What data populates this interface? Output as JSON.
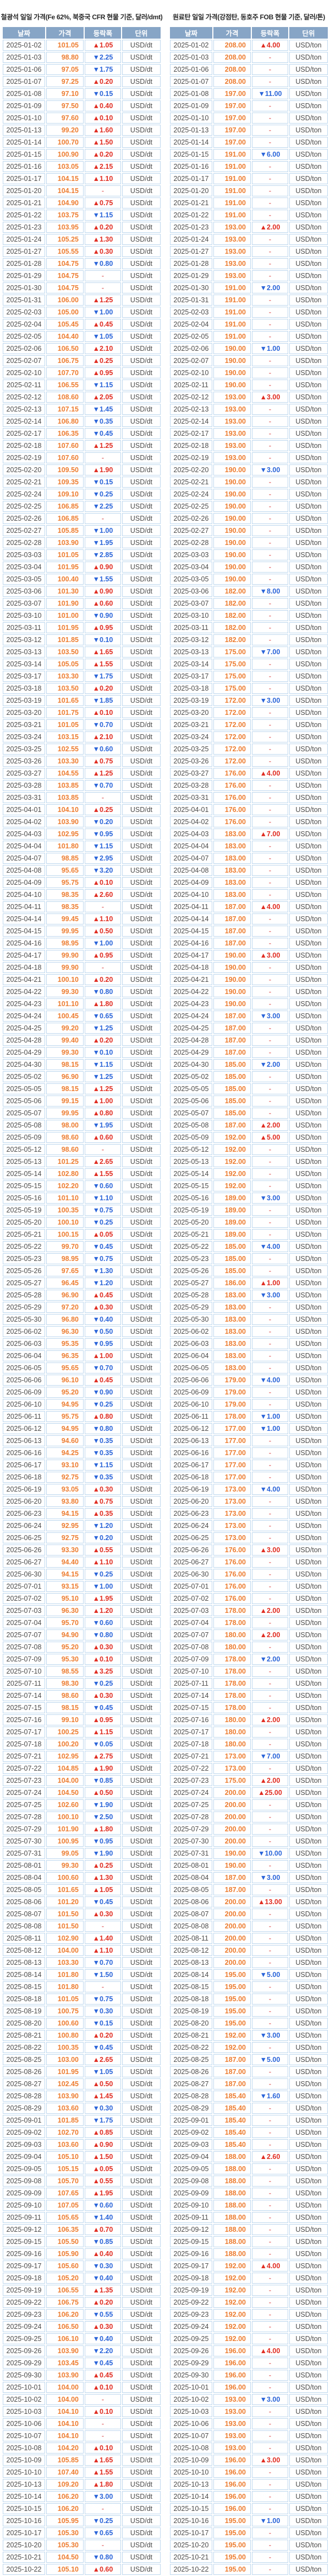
{
  "glyphs": {
    "up": "▲",
    "down": "▼",
    "flat": "-"
  },
  "colors": {
    "header_bg": "#87a5c6",
    "border_color": "#bdd7ee",
    "price_color": "#ed7d31",
    "up_color": "#e02d22",
    "down_color": "#2b65d9",
    "flat_color": "#e57f7f",
    "date_color": "#4c4c4c"
  },
  "dates": [
    "2025-01-02",
    "2025-01-03",
    "2025-01-06",
    "2025-01-07",
    "2025-01-08",
    "2025-01-09",
    "2025-01-10",
    "2025-01-13",
    "2025-01-14",
    "2025-01-15",
    "2025-01-16",
    "2025-01-17",
    "2025-01-20",
    "2025-01-21",
    "2025-01-22",
    "2025-01-23",
    "2025-01-24",
    "2025-01-27",
    "2025-01-28",
    "2025-01-29",
    "2025-01-30",
    "2025-01-31",
    "2025-02-03",
    "2025-02-04",
    "2025-02-05",
    "2025-02-06",
    "2025-02-07",
    "2025-02-10",
    "2025-02-11",
    "2025-02-12",
    "2025-02-13",
    "2025-02-14",
    "2025-02-17",
    "2025-02-18",
    "2025-02-19",
    "2025-02-20",
    "2025-02-21",
    "2025-02-24",
    "2025-02-25",
    "2025-02-26",
    "2025-02-27",
    "2025-02-28",
    "2025-03-03",
    "2025-03-04",
    "2025-03-05",
    "2025-03-06",
    "2025-03-07",
    "2025-03-10",
    "2025-03-11",
    "2025-03-12",
    "2025-03-13",
    "2025-03-14",
    "2025-03-17",
    "2025-03-18",
    "2025-03-19",
    "2025-03-20",
    "2025-03-21",
    "2025-03-24",
    "2025-03-25",
    "2025-03-26",
    "2025-03-27",
    "2025-03-28",
    "2025-03-31",
    "2025-04-01",
    "2025-04-02",
    "2025-04-03",
    "2025-04-04",
    "2025-04-07",
    "2025-04-08",
    "2025-04-09",
    "2025-04-10",
    "2025-04-11",
    "2025-04-14",
    "2025-04-15",
    "2025-04-16",
    "2025-04-17",
    "2025-04-18",
    "2025-04-21",
    "2025-04-22",
    "2025-04-23",
    "2025-04-24",
    "2025-04-25",
    "2025-04-28",
    "2025-04-29",
    "2025-04-30",
    "2025-05-02",
    "2025-05-05",
    "2025-05-06",
    "2025-05-07",
    "2025-05-08",
    "2025-05-09",
    "2025-05-12",
    "2025-05-13",
    "2025-05-14",
    "2025-05-15",
    "2025-05-16",
    "2025-05-19",
    "2025-05-20",
    "2025-05-21",
    "2025-05-22",
    "2025-05-23",
    "2025-05-26",
    "2025-05-27",
    "2025-05-28",
    "2025-05-29",
    "2025-05-30",
    "2025-06-02",
    "2025-06-03",
    "2025-06-04",
    "2025-06-05",
    "2025-06-06",
    "2025-06-09",
    "2025-06-10",
    "2025-06-11",
    "2025-06-12",
    "2025-06-13",
    "2025-06-16",
    "2025-06-17",
    "2025-06-18",
    "2025-06-19",
    "2025-06-20",
    "2025-06-23",
    "2025-06-24",
    "2025-06-25",
    "2025-06-26",
    "2025-06-27",
    "2025-06-30",
    "2025-07-01",
    "2025-07-02",
    "2025-07-03",
    "2025-07-04",
    "2025-07-07",
    "2025-07-08",
    "2025-07-09",
    "2025-07-10",
    "2025-07-11",
    "2025-07-14",
    "2025-07-15",
    "2025-07-16",
    "2025-07-17",
    "2025-07-18",
    "2025-07-21",
    "2025-07-22",
    "2025-07-23",
    "2025-07-24",
    "2025-07-25",
    "2025-07-28",
    "2025-07-29",
    "2025-07-30",
    "2025-07-31",
    "2025-08-01",
    "2025-08-04",
    "2025-08-05",
    "2025-08-06",
    "2025-08-07",
    "2025-08-08",
    "2025-08-11",
    "2025-08-12",
    "2025-08-13",
    "2025-08-14",
    "2025-08-15",
    "2025-08-18",
    "2025-08-19",
    "2025-08-20",
    "2025-08-21",
    "2025-08-22",
    "2025-08-25",
    "2025-08-26",
    "2025-08-27",
    "2025-08-28",
    "2025-08-29",
    "2025-09-01",
    "2025-09-02",
    "2025-09-03",
    "2025-09-04",
    "2025-09-05",
    "2025-09-08",
    "2025-09-09",
    "2025-09-10",
    "2025-09-11",
    "2025-09-12",
    "2025-09-15",
    "2025-09-16",
    "2025-09-17",
    "2025-09-18",
    "2025-09-19",
    "2025-09-22",
    "2025-09-23",
    "2025-09-24",
    "2025-09-25",
    "2025-09-26",
    "2025-09-29",
    "2025-09-30",
    "2025-10-01",
    "2025-10-02",
    "2025-10-03",
    "2025-10-06",
    "2025-10-07",
    "2025-10-08",
    "2025-10-09",
    "2025-10-10",
    "2025-10-13",
    "2025-10-14",
    "2025-10-15",
    "2025-10-16",
    "2025-10-17",
    "2025-10-20",
    "2025-10-21",
    "2025-10-22"
  ],
  "chart_data": [
    {
      "type": "table",
      "title": "철광석 일일 가격(Fe 62%, 북중국 CFR 현물 기준, 달러/dmt)",
      "headers": [
        "날짜",
        "가격",
        "등락폭",
        "단위"
      ],
      "unit": "USD/dt",
      "prices": [
        101.05,
        98.8,
        97.05,
        97.25,
        97.1,
        97.5,
        97.6,
        99.2,
        100.7,
        100.9,
        103.05,
        104.15,
        104.15,
        104.9,
        103.75,
        103.95,
        105.25,
        105.55,
        104.75,
        104.75,
        104.75,
        106.0,
        105.0,
        105.45,
        104.4,
        106.5,
        106.75,
        107.7,
        106.55,
        108.6,
        107.15,
        106.8,
        106.35,
        107.6,
        107.6,
        109.5,
        109.35,
        109.1,
        106.85,
        106.85,
        105.85,
        103.9,
        101.05,
        101.95,
        100.4,
        101.3,
        101.9,
        101.0,
        101.95,
        101.85,
        103.5,
        105.05,
        103.3,
        103.5,
        101.65,
        101.75,
        101.05,
        103.15,
        102.55,
        103.3,
        104.55,
        103.85,
        103.85,
        104.1,
        103.9,
        102.95,
        101.8,
        98.85,
        95.65,
        95.75,
        98.35,
        98.35,
        99.45,
        99.95,
        98.95,
        99.9,
        99.9,
        100.1,
        99.3,
        101.1,
        100.45,
        99.2,
        99.4,
        99.3,
        98.15,
        96.9,
        98.15,
        99.15,
        99.95,
        98.0,
        98.6,
        98.6,
        101.25,
        102.8,
        102.2,
        101.1,
        100.35,
        100.1,
        100.15,
        99.7,
        98.95,
        97.65,
        96.45,
        96.9,
        97.2,
        96.8,
        96.3,
        95.35,
        96.35,
        95.65,
        96.1,
        95.2,
        94.95,
        95.75,
        94.95,
        94.6,
        94.25,
        93.1,
        92.75,
        93.05,
        93.8,
        94.15,
        92.95,
        92.75,
        93.3,
        94.4,
        94.15,
        93.15,
        95.1,
        96.3,
        95.7,
        94.9,
        95.2,
        95.3,
        98.55,
        98.3,
        98.6,
        98.15,
        99.1,
        100.25,
        100.2,
        102.95,
        104.85,
        104.0,
        104.5,
        102.6,
        100.1,
        101.9,
        100.95,
        99.05,
        99.3,
        100.6,
        101.65,
        101.2,
        101.5,
        101.5,
        102.9,
        104.0,
        103.3,
        101.8,
        101.8,
        101.05,
        100.75,
        100.6,
        100.8,
        100.35,
        103.0,
        101.95,
        102.45,
        103.9,
        103.6,
        101.85,
        102.7,
        103.6,
        105.1,
        105.15,
        105.7,
        107.65,
        107.05,
        105.65,
        106.35,
        105.5,
        105.9,
        105.6,
        105.2,
        106.55,
        106.75,
        106.2,
        106.5,
        106.1,
        103.9,
        103.45,
        103.9,
        104.0,
        104.0,
        104.1,
        104.1,
        104.1,
        104.2,
        105.85,
        107.4,
        109.2,
        106.2,
        106.2,
        105.95,
        105.3,
        105.3,
        104.5,
        105.1
      ],
      "changes": [
        1.05,
        -2.25,
        -1.75,
        0.2,
        -0.15,
        0.4,
        0.1,
        1.6,
        1.5,
        0.2,
        2.15,
        1.1,
        null,
        0.75,
        -1.15,
        0.2,
        1.3,
        0.3,
        -0.8,
        null,
        null,
        1.25,
        -1.0,
        0.45,
        -1.05,
        2.1,
        0.25,
        0.95,
        -1.15,
        2.05,
        -1.45,
        -0.35,
        -0.45,
        1.25,
        null,
        1.9,
        -0.15,
        -0.25,
        -2.25,
        null,
        -1.0,
        -1.95,
        -2.85,
        0.9,
        -1.55,
        0.9,
        0.6,
        -0.9,
        0.95,
        -0.1,
        1.65,
        1.55,
        -1.75,
        0.2,
        -1.85,
        0.1,
        -0.7,
        2.1,
        -0.6,
        0.75,
        1.25,
        -0.7,
        null,
        0.25,
        -0.2,
        -0.95,
        -1.15,
        -2.95,
        -3.2,
        0.1,
        2.6,
        null,
        1.1,
        0.5,
        -1.0,
        0.95,
        null,
        0.2,
        -0.8,
        1.8,
        -0.65,
        -1.25,
        0.2,
        -0.1,
        -1.15,
        -1.25,
        1.25,
        1.0,
        0.8,
        -1.95,
        0.6,
        null,
        2.65,
        1.55,
        -0.6,
        -1.1,
        -0.75,
        -0.25,
        0.05,
        -0.45,
        -0.75,
        -1.3,
        -1.2,
        0.45,
        0.3,
        -0.4,
        -0.5,
        -0.95,
        1.0,
        -0.7,
        0.45,
        -0.9,
        -0.25,
        0.8,
        -0.8,
        -0.35,
        -0.35,
        -1.15,
        -0.35,
        0.3,
        0.75,
        0.35,
        -1.2,
        -0.2,
        0.55,
        1.1,
        -0.25,
        -1.0,
        1.95,
        1.2,
        -0.6,
        -0.8,
        0.3,
        0.1,
        3.25,
        -0.25,
        0.3,
        -0.45,
        0.95,
        1.15,
        -0.05,
        2.75,
        1.9,
        -0.85,
        0.5,
        -1.9,
        -2.5,
        1.8,
        -0.95,
        -1.9,
        0.25,
        1.3,
        1.05,
        -0.45,
        0.3,
        null,
        1.4,
        1.1,
        -0.7,
        -1.5,
        null,
        -0.75,
        -0.3,
        -0.15,
        0.2,
        -0.45,
        2.65,
        -1.05,
        0.5,
        1.45,
        -0.3,
        -1.75,
        0.85,
        0.9,
        1.5,
        0.05,
        0.55,
        1.95,
        -0.6,
        -1.4,
        0.7,
        -0.85,
        0.4,
        -0.3,
        -0.4,
        1.35,
        0.2,
        -0.55,
        0.3,
        -0.4,
        -2.2,
        -0.45,
        0.45,
        0.1,
        null,
        0.1,
        null,
        null,
        0.1,
        1.65,
        1.55,
        1.8,
        -3.0,
        null,
        -0.25,
        -0.65,
        null,
        -0.8,
        0.6
      ]
    },
    {
      "type": "table",
      "title": "원료탄 일일 가격(강점탄, 동호주 FOB 현물 기준, 달러/톤)",
      "headers": [
        "날짜",
        "가격",
        "등락폭",
        "단위"
      ],
      "unit": "USD/ton",
      "prices": [
        208,
        208,
        208,
        208,
        197,
        197,
        197,
        197,
        197,
        191,
        191,
        191,
        191,
        191,
        191,
        193,
        193,
        193,
        193,
        193,
        191,
        191,
        191,
        191,
        191,
        190,
        190,
        190,
        190,
        193,
        193,
        193,
        193,
        193,
        193,
        190,
        190,
        190,
        190,
        190,
        190,
        190,
        190,
        190,
        190,
        182,
        182,
        182,
        182,
        182,
        175,
        175,
        175,
        175,
        172,
        172,
        172,
        172,
        172,
        172,
        176,
        176,
        176,
        176,
        176,
        183,
        183,
        183,
        183,
        183,
        183,
        187,
        187,
        187,
        187,
        190,
        190,
        190,
        190,
        190,
        187,
        187,
        187,
        187,
        185,
        185,
        185,
        185,
        185,
        187,
        192,
        192,
        192,
        192,
        192,
        189,
        189,
        189,
        189,
        185,
        185,
        185,
        186,
        183,
        183,
        183,
        183,
        183,
        183,
        183,
        179,
        179,
        179,
        178,
        177,
        177,
        177,
        177,
        177,
        173,
        173,
        173,
        173,
        173,
        176,
        176,
        176,
        176,
        176,
        178,
        178,
        180,
        180,
        178,
        178,
        178,
        178,
        178,
        180,
        180,
        180,
        173,
        173,
        175,
        200,
        200,
        200,
        200,
        200,
        190,
        190,
        187,
        187,
        200,
        200,
        200,
        200,
        200,
        200,
        195,
        195,
        195,
        195,
        195,
        192,
        192,
        187,
        187,
        187,
        185.4,
        185.4,
        185.4,
        185.4,
        185.4,
        188,
        188,
        188,
        188,
        188,
        188,
        188,
        188,
        188,
        192,
        192,
        192,
        192,
        192,
        192,
        192,
        196,
        196,
        196,
        196,
        193,
        193,
        193,
        193,
        193,
        196,
        196,
        196,
        196,
        196,
        195,
        195,
        195,
        195,
        195
      ],
      "changes": [
        4.0,
        null,
        null,
        null,
        -11.0,
        null,
        null,
        null,
        null,
        -6.0,
        null,
        null,
        null,
        null,
        null,
        2.0,
        null,
        null,
        null,
        null,
        -2.0,
        null,
        null,
        null,
        null,
        -1.0,
        null,
        null,
        null,
        3.0,
        null,
        null,
        null,
        null,
        null,
        -3.0,
        null,
        null,
        null,
        null,
        null,
        null,
        null,
        null,
        null,
        -8.0,
        null,
        null,
        null,
        null,
        -7.0,
        null,
        null,
        null,
        -3.0,
        null,
        null,
        null,
        null,
        null,
        4.0,
        null,
        null,
        null,
        null,
        7.0,
        null,
        null,
        null,
        null,
        null,
        4.0,
        null,
        null,
        null,
        3.0,
        null,
        null,
        null,
        null,
        -3.0,
        null,
        null,
        null,
        -2.0,
        null,
        null,
        null,
        null,
        2.0,
        5.0,
        null,
        null,
        null,
        null,
        -3.0,
        null,
        null,
        null,
        -4.0,
        null,
        null,
        1.0,
        -3.0,
        null,
        null,
        null,
        null,
        null,
        null,
        -4.0,
        null,
        null,
        -1.0,
        -1.0,
        null,
        null,
        null,
        null,
        -4.0,
        null,
        null,
        null,
        null,
        3.0,
        null,
        null,
        null,
        null,
        2.0,
        null,
        2.0,
        null,
        -2.0,
        null,
        null,
        null,
        null,
        2.0,
        null,
        null,
        -7.0,
        null,
        2.0,
        25.0,
        null,
        null,
        null,
        null,
        -10.0,
        null,
        -3.0,
        null,
        13.0,
        null,
        null,
        null,
        null,
        null,
        -5.0,
        null,
        null,
        null,
        null,
        -3.0,
        null,
        -5.0,
        null,
        null,
        -1.6,
        null,
        null,
        null,
        null,
        2.6,
        null,
        null,
        null,
        null,
        null,
        null,
        null,
        null,
        4.0,
        null,
        null,
        null,
        null,
        null,
        null,
        4.0,
        null,
        null,
        null,
        -3.0,
        null,
        null,
        null,
        null,
        3.0,
        null,
        null,
        null,
        null,
        -1.0,
        null,
        null,
        null,
        null
      ]
    }
  ]
}
